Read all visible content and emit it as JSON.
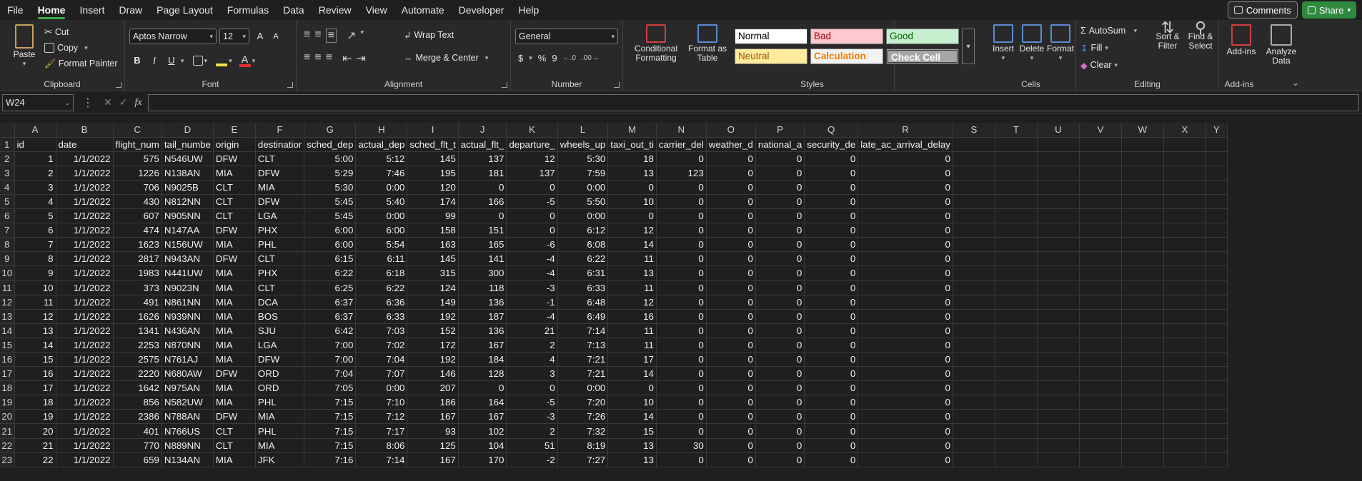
{
  "menu": [
    "File",
    "Home",
    "Insert",
    "Draw",
    "Page Layout",
    "Formulas",
    "Data",
    "Review",
    "View",
    "Automate",
    "Developer",
    "Help"
  ],
  "active_menu": "Home",
  "top_right": {
    "comments": "Comments",
    "share": "Share"
  },
  "ribbon": {
    "clipboard": {
      "paste": "Paste",
      "cut": "Cut",
      "copy": "Copy",
      "format_painter": "Format Painter",
      "label": "Clipboard"
    },
    "font": {
      "family": "Aptos Narrow",
      "size": "12",
      "bold": "B",
      "italic": "I",
      "underline": "U",
      "label": "Font",
      "grow": "A",
      "shrink": "A"
    },
    "alignment": {
      "wrap": "Wrap Text",
      "merge": "Merge & Center",
      "label": "Alignment"
    },
    "number": {
      "format": "General",
      "currency": "$",
      "percent": "%",
      "comma": "9",
      "label": "Number"
    },
    "styles": {
      "conditional": "Conditional Formatting",
      "format_table": "Format as Table",
      "cells": [
        "Normal",
        "Bad",
        "Good",
        "Neutral",
        "Calculation",
        "Check Cell"
      ],
      "label": "Styles"
    },
    "cells": {
      "insert": "Insert",
      "delete": "Delete",
      "format": "Format",
      "label": "Cells"
    },
    "editing": {
      "autosum": "AutoSum",
      "fill": "Fill",
      "clear": "Clear",
      "sort": "Sort & Filter",
      "find": "Find & Select",
      "label": "Editing"
    },
    "addins": {
      "addins": "Add-ins",
      "analyze": "Analyze Data",
      "label": "Add-ins"
    }
  },
  "formula_bar": {
    "name_box": "W24",
    "fx": "fx",
    "value": ""
  },
  "columns": [
    "A",
    "B",
    "C",
    "D",
    "E",
    "F",
    "G",
    "H",
    "I",
    "J",
    "K",
    "L",
    "M",
    "N",
    "O",
    "P",
    "Q",
    "R",
    "S",
    "T",
    "U",
    "V",
    "W",
    "X",
    "Y"
  ],
  "header_row": [
    "id",
    "date",
    "flight_num",
    "tail_numbe",
    "origin",
    "destinatior",
    "sched_dep",
    "actual_dep",
    "sched_flt_t",
    "actual_flt_",
    "departure_",
    "wheels_up",
    "taxi_out_ti",
    "carrier_del",
    "weather_d",
    "national_a",
    "security_de",
    "late_ac_arrival_delay"
  ],
  "rows": [
    [
      "1",
      "1/1/2022",
      "575",
      "N546UW",
      "DFW",
      "CLT",
      "5:00",
      "5:12",
      "145",
      "137",
      "12",
      "5:30",
      "18",
      "0",
      "0",
      "0",
      "0",
      "0"
    ],
    [
      "2",
      "1/1/2022",
      "1226",
      "N138AN",
      "MIA",
      "DFW",
      "5:29",
      "7:46",
      "195",
      "181",
      "137",
      "7:59",
      "13",
      "123",
      "0",
      "0",
      "0",
      "0"
    ],
    [
      "3",
      "1/1/2022",
      "706",
      "N9025B",
      "CLT",
      "MIA",
      "5:30",
      "0:00",
      "120",
      "0",
      "0",
      "0:00",
      "0",
      "0",
      "0",
      "0",
      "0",
      "0"
    ],
    [
      "4",
      "1/1/2022",
      "430",
      "N812NN",
      "CLT",
      "DFW",
      "5:45",
      "5:40",
      "174",
      "166",
      "-5",
      "5:50",
      "10",
      "0",
      "0",
      "0",
      "0",
      "0"
    ],
    [
      "5",
      "1/1/2022",
      "607",
      "N905NN",
      "CLT",
      "LGA",
      "5:45",
      "0:00",
      "99",
      "0",
      "0",
      "0:00",
      "0",
      "0",
      "0",
      "0",
      "0",
      "0"
    ],
    [
      "6",
      "1/1/2022",
      "474",
      "N147AA",
      "DFW",
      "PHX",
      "6:00",
      "6:00",
      "158",
      "151",
      "0",
      "6:12",
      "12",
      "0",
      "0",
      "0",
      "0",
      "0"
    ],
    [
      "7",
      "1/1/2022",
      "1623",
      "N156UW",
      "MIA",
      "PHL",
      "6:00",
      "5:54",
      "163",
      "165",
      "-6",
      "6:08",
      "14",
      "0",
      "0",
      "0",
      "0",
      "0"
    ],
    [
      "8",
      "1/1/2022",
      "2817",
      "N943AN",
      "DFW",
      "CLT",
      "6:15",
      "6:11",
      "145",
      "141",
      "-4",
      "6:22",
      "11",
      "0",
      "0",
      "0",
      "0",
      "0"
    ],
    [
      "9",
      "1/1/2022",
      "1983",
      "N441UW",
      "MIA",
      "PHX",
      "6:22",
      "6:18",
      "315",
      "300",
      "-4",
      "6:31",
      "13",
      "0",
      "0",
      "0",
      "0",
      "0"
    ],
    [
      "10",
      "1/1/2022",
      "373",
      "N9023N",
      "MIA",
      "CLT",
      "6:25",
      "6:22",
      "124",
      "118",
      "-3",
      "6:33",
      "11",
      "0",
      "0",
      "0",
      "0",
      "0"
    ],
    [
      "11",
      "1/1/2022",
      "491",
      "N861NN",
      "MIA",
      "DCA",
      "6:37",
      "6:36",
      "149",
      "136",
      "-1",
      "6:48",
      "12",
      "0",
      "0",
      "0",
      "0",
      "0"
    ],
    [
      "12",
      "1/1/2022",
      "1626",
      "N939NN",
      "MIA",
      "BOS",
      "6:37",
      "6:33",
      "192",
      "187",
      "-4",
      "6:49",
      "16",
      "0",
      "0",
      "0",
      "0",
      "0"
    ],
    [
      "13",
      "1/1/2022",
      "1341",
      "N436AN",
      "MIA",
      "SJU",
      "6:42",
      "7:03",
      "152",
      "136",
      "21",
      "7:14",
      "11",
      "0",
      "0",
      "0",
      "0",
      "0"
    ],
    [
      "14",
      "1/1/2022",
      "2253",
      "N870NN",
      "MIA",
      "LGA",
      "7:00",
      "7:02",
      "172",
      "167",
      "2",
      "7:13",
      "11",
      "0",
      "0",
      "0",
      "0",
      "0"
    ],
    [
      "15",
      "1/1/2022",
      "2575",
      "N761AJ",
      "MIA",
      "DFW",
      "7:00",
      "7:04",
      "192",
      "184",
      "4",
      "7:21",
      "17",
      "0",
      "0",
      "0",
      "0",
      "0"
    ],
    [
      "16",
      "1/1/2022",
      "2220",
      "N680AW",
      "DFW",
      "ORD",
      "7:04",
      "7:07",
      "146",
      "128",
      "3",
      "7:21",
      "14",
      "0",
      "0",
      "0",
      "0",
      "0"
    ],
    [
      "17",
      "1/1/2022",
      "1642",
      "N975AN",
      "MIA",
      "ORD",
      "7:05",
      "0:00",
      "207",
      "0",
      "0",
      "0:00",
      "0",
      "0",
      "0",
      "0",
      "0",
      "0"
    ],
    [
      "18",
      "1/1/2022",
      "856",
      "N582UW",
      "MIA",
      "PHL",
      "7:15",
      "7:10",
      "186",
      "164",
      "-5",
      "7:20",
      "10",
      "0",
      "0",
      "0",
      "0",
      "0"
    ],
    [
      "19",
      "1/1/2022",
      "2386",
      "N788AN",
      "DFW",
      "MIA",
      "7:15",
      "7:12",
      "167",
      "167",
      "-3",
      "7:26",
      "14",
      "0",
      "0",
      "0",
      "0",
      "0"
    ],
    [
      "20",
      "1/1/2022",
      "401",
      "N766US",
      "CLT",
      "PHL",
      "7:15",
      "7:17",
      "93",
      "102",
      "2",
      "7:32",
      "15",
      "0",
      "0",
      "0",
      "0",
      "0"
    ],
    [
      "21",
      "1/1/2022",
      "770",
      "N889NN",
      "CLT",
      "MIA",
      "7:15",
      "8:06",
      "125",
      "104",
      "51",
      "8:19",
      "13",
      "30",
      "0",
      "0",
      "0",
      "0"
    ],
    [
      "22",
      "1/1/2022",
      "659",
      "N134AN",
      "MIA",
      "JFK",
      "7:16",
      "7:14",
      "167",
      "170",
      "-2",
      "7:27",
      "13",
      "0",
      "0",
      "0",
      "0",
      "0"
    ]
  ]
}
